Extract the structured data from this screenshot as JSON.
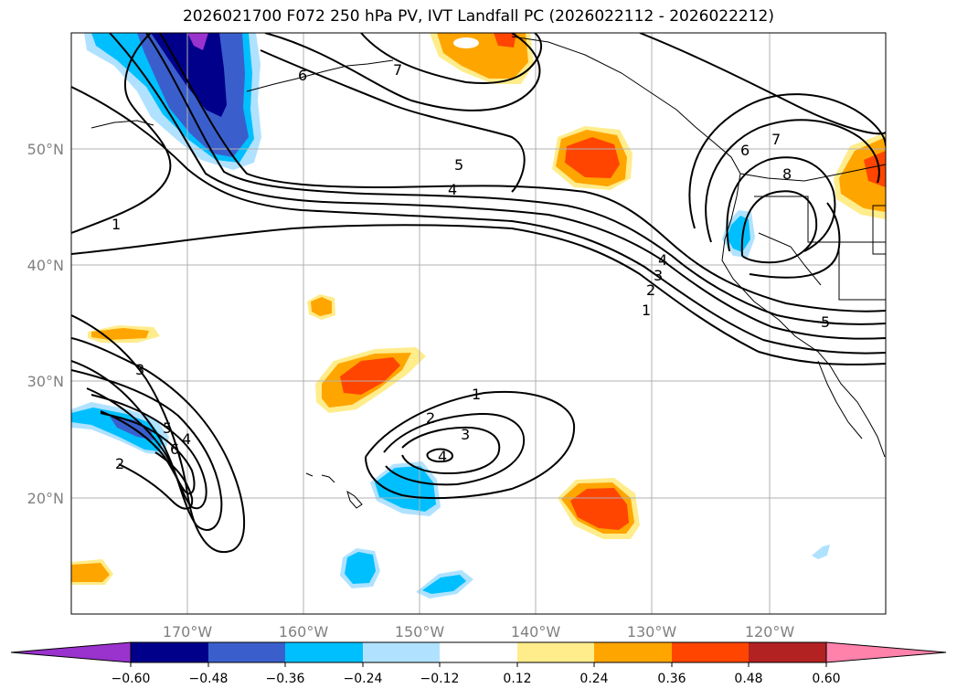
{
  "title": "2026021700 F072 250 hPa PV, IVT Landfall PC (2026022112 - 2026022212)",
  "lon_ticks": [
    "170°W",
    "160°W",
    "150°W",
    "140°W",
    "130°W",
    "120°W"
  ],
  "lat_ticks": [
    "50°N",
    "40°N",
    "30°N",
    "20°N"
  ],
  "contour_labels": [
    "1",
    "2",
    "3",
    "4",
    "5",
    "6",
    "7",
    "8"
  ],
  "colorbar": {
    "ticks": [
      "−0.60",
      "−0.48",
      "−0.36",
      "−0.24",
      "−0.12",
      "0.12",
      "0.24",
      "0.36",
      "0.48",
      "0.60"
    ],
    "colors": [
      "#9a32cd",
      "#00008b",
      "#3a5fcd",
      "#00bfff",
      "#b0e2ff",
      "#ffffff",
      "#ffec8b",
      "#ffa500",
      "#ff4500",
      "#b22222",
      "#ff82ab"
    ]
  }
}
